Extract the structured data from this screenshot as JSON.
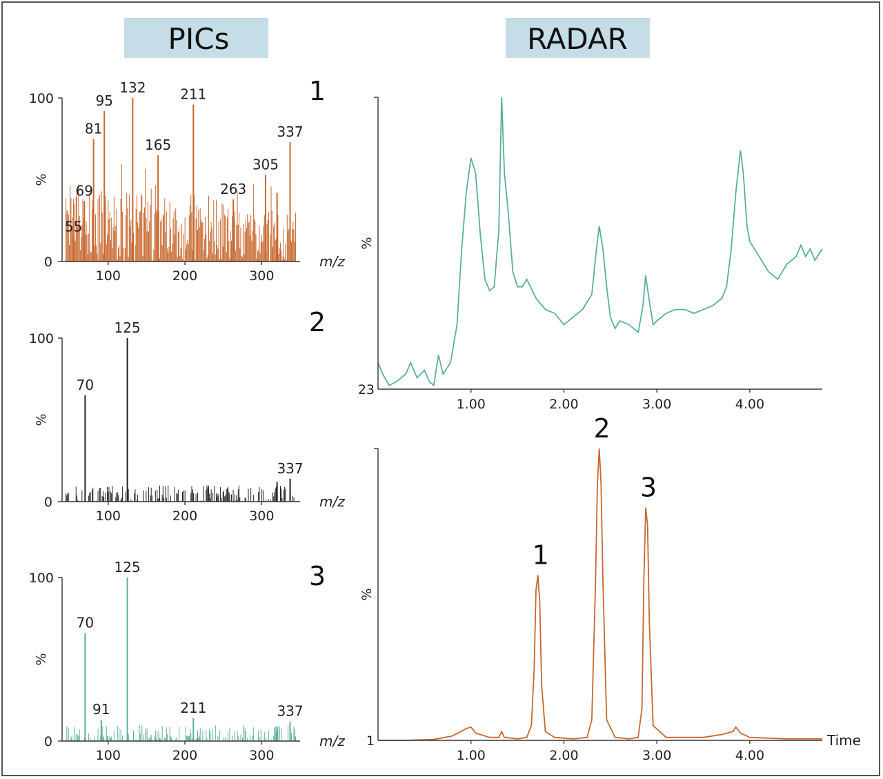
{
  "headers": {
    "left": "PICs",
    "right": "RADAR"
  },
  "colors": {
    "orange": "#c8672d",
    "black": "#222222",
    "teal": "#5aaea0",
    "header_bg": "#c5dde6"
  },
  "chart_data": [
    {
      "type": "bar",
      "panel_label": "1",
      "color": "#c8672d",
      "ylabel": "%",
      "xlabel": "m/z",
      "ylim": [
        0,
        100
      ],
      "xlim": [
        40,
        350
      ],
      "y_ticks": [
        "0",
        "100"
      ],
      "x_ticks": [
        100,
        200,
        300
      ],
      "peak_labels": [
        {
          "x": 55,
          "text": "55"
        },
        {
          "x": 69,
          "text": "69"
        },
        {
          "x": 81,
          "text": "81"
        },
        {
          "x": 95,
          "text": "95"
        },
        {
          "x": 132,
          "text": "132"
        },
        {
          "x": 165,
          "text": "165"
        },
        {
          "x": 211,
          "text": "211"
        },
        {
          "x": 263,
          "text": "263"
        },
        {
          "x": 305,
          "text": "305"
        },
        {
          "x": 337,
          "text": "337"
        }
      ],
      "major_peaks": [
        {
          "x": 55,
          "y": 15
        },
        {
          "x": 69,
          "y": 37
        },
        {
          "x": 81,
          "y": 75
        },
        {
          "x": 95,
          "y": 92
        },
        {
          "x": 132,
          "y": 100
        },
        {
          "x": 165,
          "y": 65
        },
        {
          "x": 211,
          "y": 96
        },
        {
          "x": 263,
          "y": 38
        },
        {
          "x": 305,
          "y": 53
        },
        {
          "x": 320,
          "y": 42
        },
        {
          "x": 337,
          "y": 73
        }
      ]
    },
    {
      "type": "bar",
      "panel_label": "2",
      "color": "#222222",
      "ylabel": "%",
      "xlabel": "m/z",
      "ylim": [
        0,
        100
      ],
      "xlim": [
        40,
        350
      ],
      "y_ticks": [
        "0",
        "100"
      ],
      "x_ticks": [
        100,
        200,
        300
      ],
      "peak_labels": [
        {
          "x": 70,
          "text": "70"
        },
        {
          "x": 125,
          "text": "125"
        },
        {
          "x": 337,
          "text": "337"
        }
      ],
      "major_peaks": [
        {
          "x": 70,
          "y": 65
        },
        {
          "x": 125,
          "y": 100
        },
        {
          "x": 320,
          "y": 12
        },
        {
          "x": 337,
          "y": 14
        }
      ]
    },
    {
      "type": "bar",
      "panel_label": "3",
      "color": "#5aaea0",
      "ylabel": "%",
      "xlabel": "m/z",
      "ylim": [
        0,
        100
      ],
      "xlim": [
        40,
        350
      ],
      "y_ticks": [
        "0",
        "100"
      ],
      "x_ticks": [
        100,
        200,
        300
      ],
      "peak_labels": [
        {
          "x": 70,
          "text": "70"
        },
        {
          "x": 91,
          "text": "91"
        },
        {
          "x": 125,
          "text": "125"
        },
        {
          "x": 211,
          "text": "211"
        },
        {
          "x": 337,
          "text": "337"
        }
      ],
      "major_peaks": [
        {
          "x": 70,
          "y": 66
        },
        {
          "x": 91,
          "y": 13
        },
        {
          "x": 125,
          "y": 100
        },
        {
          "x": 211,
          "y": 14
        },
        {
          "x": 320,
          "y": 9
        },
        {
          "x": 337,
          "y": 12
        }
      ]
    },
    {
      "type": "line",
      "color": "#5aaea0",
      "ylabel": "%",
      "xlim": [
        0,
        4.78
      ],
      "ylim": [
        23,
        100
      ],
      "y_ticks": [
        "23"
      ],
      "x_ticks": [
        "1.00",
        "2.00",
        "3.00",
        "4.00"
      ],
      "x": [
        0.0,
        0.05,
        0.12,
        0.2,
        0.3,
        0.35,
        0.42,
        0.5,
        0.55,
        0.6,
        0.65,
        0.7,
        0.78,
        0.85,
        0.9,
        0.95,
        1.0,
        1.05,
        1.1,
        1.15,
        1.2,
        1.25,
        1.3,
        1.33,
        1.36,
        1.4,
        1.45,
        1.5,
        1.55,
        1.6,
        1.7,
        1.8,
        1.9,
        2.0,
        2.1,
        2.2,
        2.3,
        2.35,
        2.38,
        2.42,
        2.46,
        2.5,
        2.55,
        2.6,
        2.7,
        2.8,
        2.85,
        2.88,
        2.92,
        2.96,
        3.0,
        3.1,
        3.2,
        3.3,
        3.4,
        3.5,
        3.6,
        3.7,
        3.75,
        3.8,
        3.85,
        3.9,
        3.93,
        3.97,
        4.0,
        4.05,
        4.1,
        4.2,
        4.3,
        4.4,
        4.5,
        4.55,
        4.6,
        4.65,
        4.7,
        4.78
      ],
      "y": [
        30,
        27,
        24,
        25,
        27,
        30,
        26,
        28,
        25,
        24,
        32,
        27,
        30,
        40,
        60,
        75,
        84,
        80,
        64,
        52,
        49,
        50,
        65,
        100,
        80,
        70,
        54,
        50,
        50,
        52,
        47,
        44,
        43,
        40,
        42,
        44,
        48,
        60,
        66,
        60,
        50,
        42,
        39,
        41,
        40,
        38,
        45,
        53,
        46,
        40,
        41,
        43,
        44,
        44,
        43,
        44,
        45,
        47,
        50,
        60,
        75,
        86,
        80,
        66,
        62,
        60,
        58,
        54,
        52,
        56,
        58,
        61,
        58,
        60,
        57,
        60
      ]
    },
    {
      "type": "line",
      "color": "#c8672d",
      "ylabel": "%",
      "xlabel": "Time",
      "xlim": [
        0,
        4.78
      ],
      "ylim": [
        1,
        100
      ],
      "y_ticks": [
        "1"
      ],
      "x_ticks": [
        "1.00",
        "2.00",
        "3.00",
        "4.00"
      ],
      "peak_labels": [
        {
          "x": 1.72,
          "text": "1"
        },
        {
          "x": 2.38,
          "text": "2"
        },
        {
          "x": 2.88,
          "text": "3"
        }
      ],
      "x": [
        0.0,
        0.3,
        0.6,
        0.8,
        0.95,
        1.0,
        1.05,
        1.2,
        1.3,
        1.33,
        1.36,
        1.5,
        1.6,
        1.65,
        1.68,
        1.7,
        1.72,
        1.74,
        1.76,
        1.8,
        1.9,
        2.1,
        2.25,
        2.3,
        2.34,
        2.36,
        2.38,
        2.4,
        2.42,
        2.46,
        2.55,
        2.7,
        2.8,
        2.84,
        2.86,
        2.88,
        2.9,
        2.92,
        2.96,
        3.1,
        3.5,
        3.7,
        3.82,
        3.85,
        3.9,
        4.0,
        4.4,
        4.78
      ],
      "y": [
        1,
        1,
        1.3,
        2.5,
        5,
        5.5,
        3.5,
        2,
        2,
        4,
        2,
        1.5,
        2,
        6,
        25,
        52,
        57,
        48,
        20,
        4,
        2,
        1.5,
        2,
        8,
        55,
        88,
        100,
        88,
        55,
        8,
        2,
        1.5,
        2,
        12,
        55,
        80,
        74,
        40,
        6,
        2,
        2,
        3,
        4,
        5.5,
        3.5,
        2,
        1.5,
        1.5
      ]
    }
  ]
}
